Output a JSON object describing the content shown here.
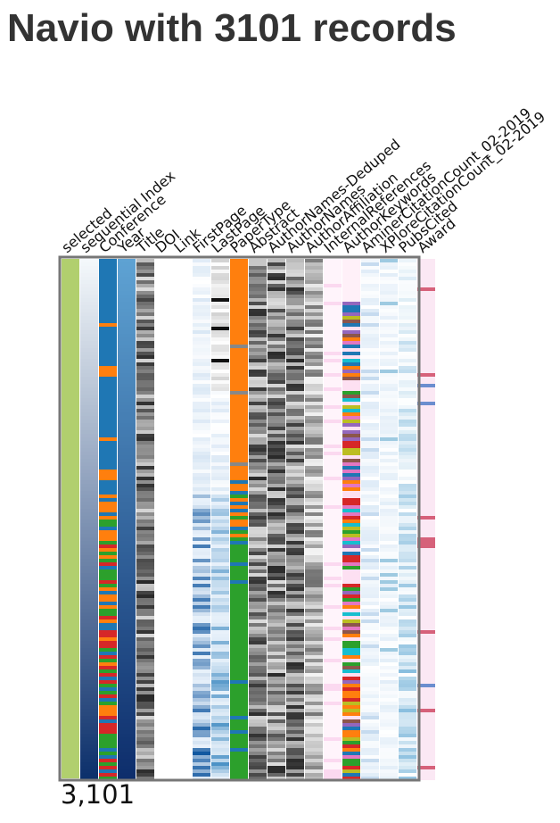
{
  "header": {
    "title": "Navio with 3101 records"
  },
  "colors": {
    "selected": "#b1cf6e",
    "orange": "#ff7f0e",
    "blue": "#1f77b4",
    "green": "#2ca02c",
    "red": "#d62728",
    "frame": "#777777"
  },
  "navio": {
    "selected_count": "3,101",
    "columns": [
      {
        "label": "selected",
        "kind": "selected"
      },
      {
        "label": "sequential Index",
        "kind": "seq"
      },
      {
        "label": "Conference",
        "kind": "conference"
      },
      {
        "label": "Year",
        "kind": "year"
      },
      {
        "label": "Title",
        "kind": "gray"
      },
      {
        "label": "DOI",
        "kind": "blank"
      },
      {
        "label": "Link",
        "kind": "blank"
      },
      {
        "label": "FirstPage",
        "kind": "pages"
      },
      {
        "label": "LastPage",
        "kind": "pages2"
      },
      {
        "label": "PaperType",
        "kind": "papertype"
      },
      {
        "label": "Abstract",
        "kind": "gray"
      },
      {
        "label": "AuthorNames-Deduped",
        "kind": "gray"
      },
      {
        "label": "AuthorNames",
        "kind": "gray"
      },
      {
        "label": "AuthorAffiliation",
        "kind": "gray2"
      },
      {
        "label": "InternalReferences",
        "kind": "pink"
      },
      {
        "label": "AuthorKeywords",
        "kind": "keywords"
      },
      {
        "label": "AminerCitationCount_02-2019",
        "kind": "pale"
      },
      {
        "label": "XPloreCitationCount_02-2019",
        "kind": "pale2"
      },
      {
        "label": "PubsCited",
        "kind": "light"
      },
      {
        "label": "Award",
        "kind": "award"
      }
    ]
  }
}
